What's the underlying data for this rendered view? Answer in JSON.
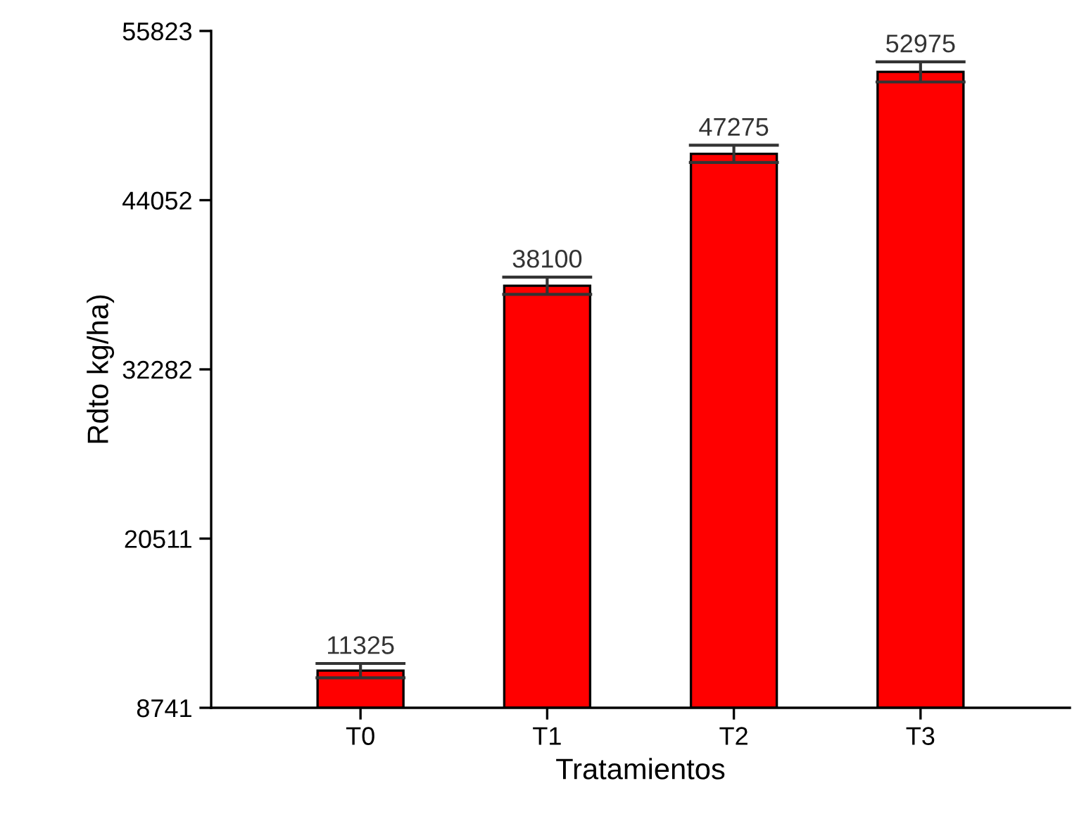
{
  "chart_data": {
    "type": "bar",
    "xlabel": "Tratamientos",
    "ylabel": "Rdto kg/ha)",
    "categories": [
      "T0",
      "T1",
      "T2",
      "T3"
    ],
    "values": [
      11325,
      38100,
      47275,
      52975
    ],
    "errors": [
      500,
      600,
      600,
      700
    ],
    "color": "#ff0000",
    "data_labels": true,
    "grid": false,
    "legend": false,
    "ylim": [
      8741,
      55823
    ],
    "yticks": [
      8741,
      20511,
      32282,
      44052,
      55823
    ]
  }
}
